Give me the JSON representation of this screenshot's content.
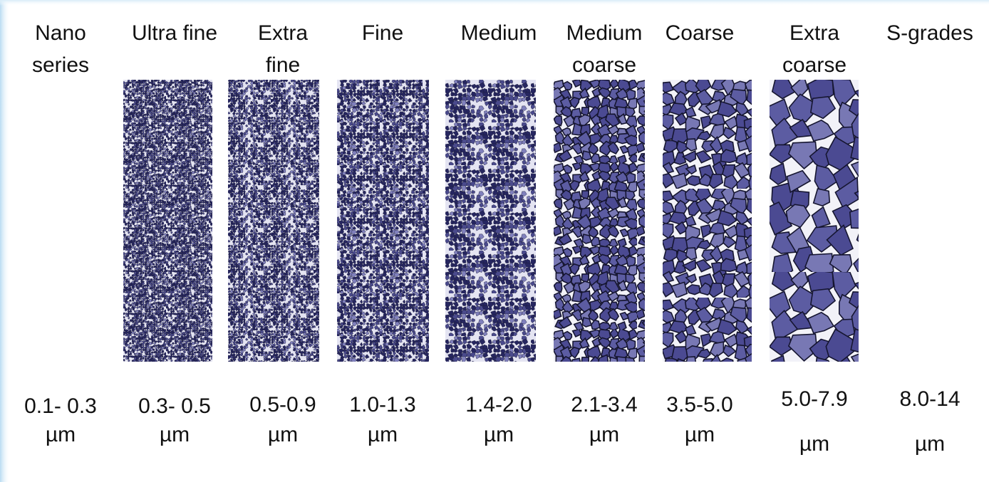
{
  "columns": [
    {
      "label_lines": [
        "Nano",
        "series"
      ],
      "range": "0.1- 0.3",
      "unit": "µm"
    },
    {
      "label_lines": [
        "Ultra fine"
      ],
      "range": "0.3- 0.5",
      "unit": "µm"
    },
    {
      "label_lines": [
        "Extra",
        "fine"
      ],
      "range": "0.5-0.9",
      "unit": "µm"
    },
    {
      "label_lines": [
        "Fine"
      ],
      "range": "1.0-1.3",
      "unit": "µm"
    },
    {
      "label_lines": [
        "Medium"
      ],
      "range": "1.4-2.0",
      "unit": "µm"
    },
    {
      "label_lines": [
        "Medium",
        "coarse"
      ],
      "range": "2.1-3.4",
      "unit": "µm"
    },
    {
      "label_lines": [
        "Coarse"
      ],
      "range": "3.5-5.0",
      "unit": "µm"
    },
    {
      "label_lines": [
        "Extra",
        "coarse"
      ],
      "range": "5.0-7.9",
      "unit": "µm"
    },
    {
      "label_lines": [
        "S-grades"
      ],
      "range": "8.0-14",
      "unit": "µm"
    }
  ]
}
